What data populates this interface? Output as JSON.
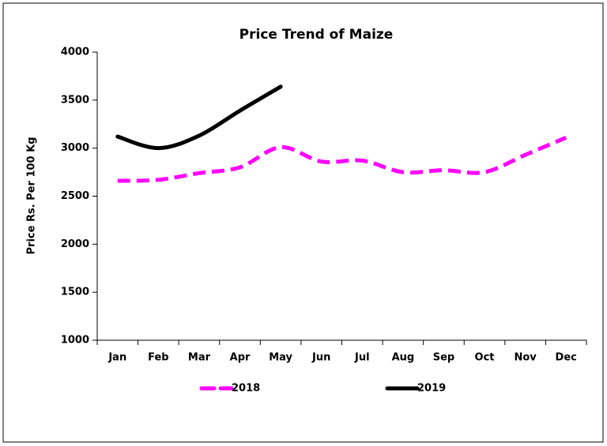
{
  "chart_data": {
    "type": "line",
    "title": "Price Trend of Maize",
    "y_label": "Price Rs. Per 100 Kg",
    "categories": [
      "Jan",
      "Feb",
      "Mar",
      "Apr",
      "May",
      "Jun",
      "Jul",
      "Aug",
      "Sep",
      "Oct",
      "Nov",
      "Dec"
    ],
    "series": [
      {
        "name": "2018",
        "color": "#ff00ff",
        "dashed": true,
        "values": [
          2660,
          2670,
          2740,
          2800,
          3010,
          2860,
          2870,
          2750,
          2770,
          2750,
          2930,
          3110
        ]
      },
      {
        "name": "2019",
        "color": "#000000",
        "dashed": false,
        "values": [
          3120,
          3000,
          3130,
          3390,
          3640,
          null,
          null,
          null,
          null,
          null,
          null,
          null
        ]
      }
    ],
    "ylim": [
      1000,
      4000
    ],
    "yticks": [
      1000,
      1500,
      2000,
      2500,
      3000,
      3500,
      4000
    ],
    "smooth": true,
    "legend": "bottom"
  }
}
